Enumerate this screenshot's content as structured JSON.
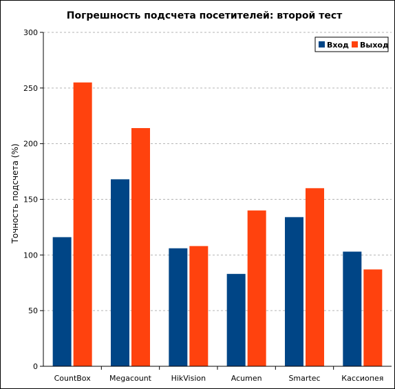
{
  "chart_data": {
    "type": "bar",
    "title": "Погрешность подсчета посетителей: второй тест",
    "xlabel": "",
    "ylabel": "Точность подсчета (%)",
    "ylim": [
      0,
      300
    ],
    "yticks": [
      0,
      50,
      100,
      150,
      200,
      250,
      300
    ],
    "grid": true,
    "legend_position": "top-right",
    "categories": [
      "CountBox",
      "Megacount",
      "HikVision",
      "Acumen",
      "Smartec",
      "Кассиопея"
    ],
    "series": [
      {
        "name": "Вход",
        "color": "#004586",
        "values": [
          116,
          168,
          106,
          83,
          134,
          103
        ]
      },
      {
        "name": "Выход",
        "color": "#ff420e",
        "values": [
          255,
          214,
          108,
          140,
          160,
          87
        ]
      }
    ]
  }
}
